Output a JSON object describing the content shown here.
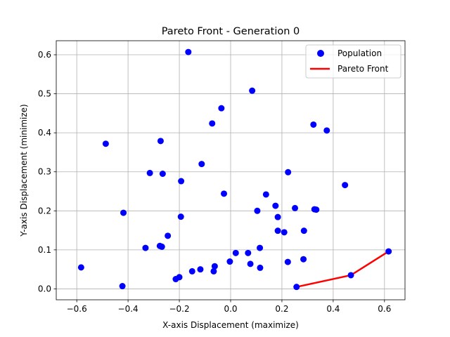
{
  "chart_data": {
    "type": "scatter",
    "title": "Pareto Front - Generation 0",
    "xlabel": "X-axis Displacement (maximize)",
    "ylabel": "Y-axis Displacement (minimize)",
    "xlim": [
      -0.68,
      0.68
    ],
    "ylim": [
      -0.028,
      0.636
    ],
    "xticks": [
      -0.6,
      -0.4,
      -0.2,
      0.0,
      0.2,
      0.4,
      0.6
    ],
    "yticks": [
      0.0,
      0.1,
      0.2,
      0.3,
      0.4,
      0.5,
      0.6
    ],
    "xtick_labels": [
      "−0.6",
      "−0.4",
      "−0.2",
      "0.0",
      "0.2",
      "0.4",
      "0.6"
    ],
    "ytick_labels": [
      "0.0",
      "0.1",
      "0.2",
      "0.3",
      "0.4",
      "0.5",
      "0.6"
    ],
    "grid": true,
    "legend_position": "top-right",
    "series": [
      {
        "name": "Population",
        "kind": "scatter",
        "color": "#0000ff",
        "points": [
          [
            -0.165,
            0.607
          ],
          [
            0.084,
            0.508
          ],
          [
            -0.036,
            0.463
          ],
          [
            -0.072,
            0.424
          ],
          [
            0.323,
            0.421
          ],
          [
            0.375,
            0.406
          ],
          [
            -0.273,
            0.379
          ],
          [
            -0.487,
            0.372
          ],
          [
            -0.113,
            0.32
          ],
          [
            -0.315,
            0.297
          ],
          [
            -0.265,
            0.295
          ],
          [
            0.224,
            0.299
          ],
          [
            -0.193,
            0.276
          ],
          [
            0.446,
            0.266
          ],
          [
            -0.026,
            0.244
          ],
          [
            0.138,
            0.242
          ],
          [
            0.175,
            0.213
          ],
          [
            0.251,
            0.207
          ],
          [
            0.327,
            0.204
          ],
          [
            0.334,
            0.203
          ],
          [
            0.104,
            0.2
          ],
          [
            -0.418,
            0.195
          ],
          [
            -0.194,
            0.185
          ],
          [
            0.184,
            0.184
          ],
          [
            0.184,
            0.149
          ],
          [
            0.209,
            0.145
          ],
          [
            0.286,
            0.149
          ],
          [
            -0.245,
            0.136
          ],
          [
            -0.276,
            0.11
          ],
          [
            -0.268,
            0.108
          ],
          [
            -0.332,
            0.105
          ],
          [
            0.114,
            0.105
          ],
          [
            0.02,
            0.092
          ],
          [
            0.068,
            0.092
          ],
          [
            0.616,
            0.096
          ],
          [
            0.284,
            0.076
          ],
          [
            -0.003,
            0.07
          ],
          [
            0.223,
            0.069
          ],
          [
            0.077,
            0.064
          ],
          [
            -0.062,
            0.058
          ],
          [
            0.115,
            0.054
          ],
          [
            -0.583,
            0.055
          ],
          [
            -0.118,
            0.05
          ],
          [
            -0.15,
            0.045
          ],
          [
            -0.066,
            0.045
          ],
          [
            0.469,
            0.035
          ],
          [
            -0.2,
            0.03
          ],
          [
            -0.214,
            0.025
          ],
          [
            -0.422,
            0.007
          ],
          [
            0.257,
            0.005
          ]
        ]
      },
      {
        "name": "Pareto Front",
        "kind": "line",
        "color": "#ff0000",
        "points": [
          [
            0.257,
            0.005
          ],
          [
            0.469,
            0.035
          ],
          [
            0.616,
            0.096
          ]
        ]
      }
    ]
  }
}
